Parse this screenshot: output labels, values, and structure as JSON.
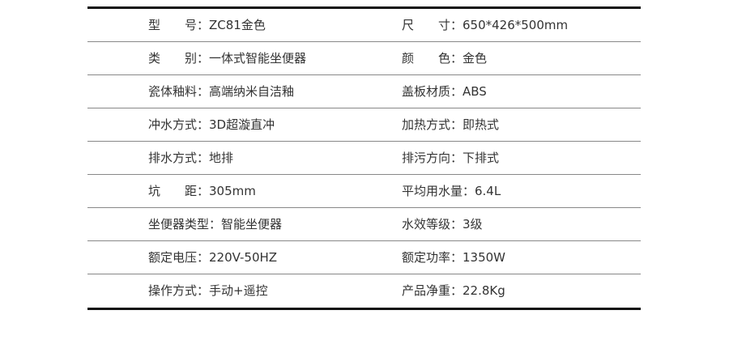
{
  "specs": [
    {
      "left": "型　　号：ZC81金色",
      "right": "尺　　寸：650*426*500mm"
    },
    {
      "left": "类　　别：一体式智能坐便器",
      "right": "颜　　色：金色"
    },
    {
      "left": "瓷体釉料：高端纳米自洁釉",
      "right": "盖板材质：ABS"
    },
    {
      "left": "冲水方式：3D超漩直冲",
      "right": "加热方式：即热式"
    },
    {
      "left": "排水方式：地排",
      "right": "排污方向：下排式"
    },
    {
      "left": "坑　　距：305mm",
      "right": "平均用水量：6.4L"
    },
    {
      "left": "坐便器类型：智能坐便器",
      "right": "水效等级：3级"
    },
    {
      "left": "额定电压：220V-50HZ",
      "right": "额定功率：1350W"
    },
    {
      "left": "操作方式：手动+遥控",
      "right": "产品净重：22.8Kg"
    }
  ]
}
